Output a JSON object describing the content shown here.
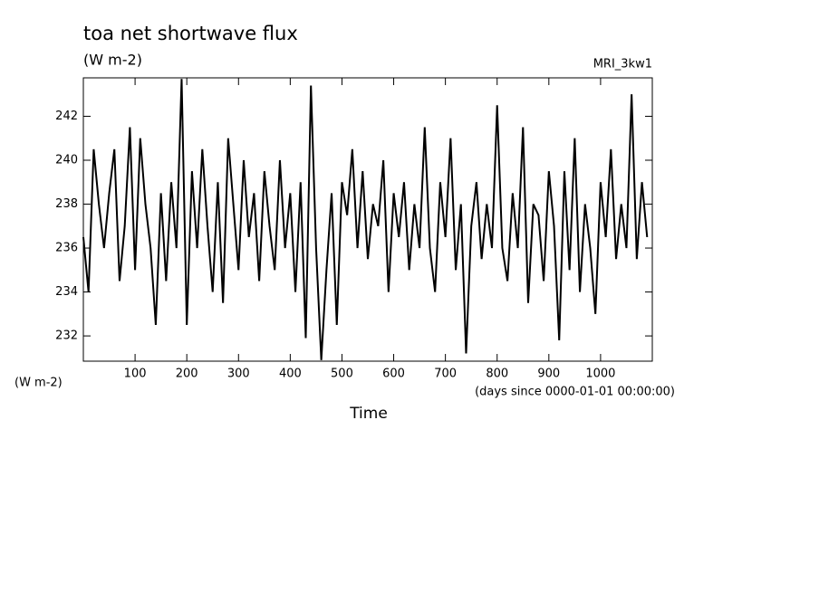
{
  "chart_data": {
    "type": "line",
    "title": "toa net shortwave flux",
    "subtitle": "(W m-2)",
    "annotation": "MRI_3kw1",
    "ylabel": "(W m-2)",
    "xunits": "(days since 0000-01-01 00:00:00)",
    "xlabel": "Time",
    "x": [
      0,
      10,
      20,
      30,
      40,
      50,
      60,
      70,
      80,
      90,
      100,
      110,
      120,
      130,
      140,
      150,
      160,
      170,
      180,
      190,
      200,
      210,
      220,
      230,
      240,
      250,
      260,
      270,
      280,
      290,
      300,
      310,
      320,
      330,
      340,
      350,
      360,
      370,
      380,
      390,
      400,
      410,
      420,
      430,
      440,
      450,
      460,
      470,
      480,
      490,
      500,
      510,
      520,
      530,
      540,
      550,
      560,
      570,
      580,
      590,
      600,
      610,
      620,
      630,
      640,
      650,
      660,
      670,
      680,
      690,
      700,
      710,
      720,
      730,
      740,
      750,
      760,
      770,
      780,
      790,
      800,
      810,
      820,
      830,
      840,
      850,
      860,
      870,
      880,
      890,
      900,
      910,
      920,
      930,
      940,
      950,
      960,
      970,
      980,
      990,
      1000,
      1010,
      1020,
      1030,
      1040,
      1050,
      1060,
      1070,
      1080,
      1090
    ],
    "series": [
      {
        "color": "#000000",
        "values": [
          236.5,
          234,
          240.5,
          238,
          236,
          238.5,
          240.5,
          234.5,
          237,
          241.5,
          235,
          241,
          238,
          236,
          232.5,
          238.5,
          234.5,
          239,
          236,
          243.7,
          232.5,
          239.5,
          236,
          240.5,
          237,
          234,
          239,
          233.5,
          241,
          238,
          235,
          240,
          236.5,
          238.5,
          234.5,
          239.5,
          237,
          235,
          240,
          236,
          238.5,
          234,
          239,
          231.9,
          243.4,
          236,
          230.9,
          235,
          238.5,
          232.5,
          239,
          237.5,
          240.5,
          236,
          239.5,
          235.5,
          238,
          237,
          240,
          234,
          238.5,
          236.5,
          239,
          235,
          238,
          236,
          241.5,
          236,
          234,
          239,
          236.5,
          241,
          235,
          238,
          231.2,
          237,
          239,
          235.5,
          238,
          236,
          242.5,
          236,
          234.5,
          238.5,
          236,
          241.5,
          233.5,
          238,
          237.5,
          234.5,
          239.5,
          237,
          231.8,
          239.5,
          235,
          241,
          234,
          238,
          236,
          233,
          239,
          236.5,
          240.5,
          235.5,
          238,
          236,
          243,
          235.5,
          239,
          236.5
        ]
      }
    ],
    "xlim": [
      0,
      1100
    ],
    "ylim": [
      230.85,
      243.75
    ],
    "xticks": [
      100,
      200,
      300,
      400,
      500,
      600,
      700,
      800,
      900,
      1000
    ],
    "yticks": [
      232,
      234,
      236,
      238,
      240,
      242
    ]
  }
}
